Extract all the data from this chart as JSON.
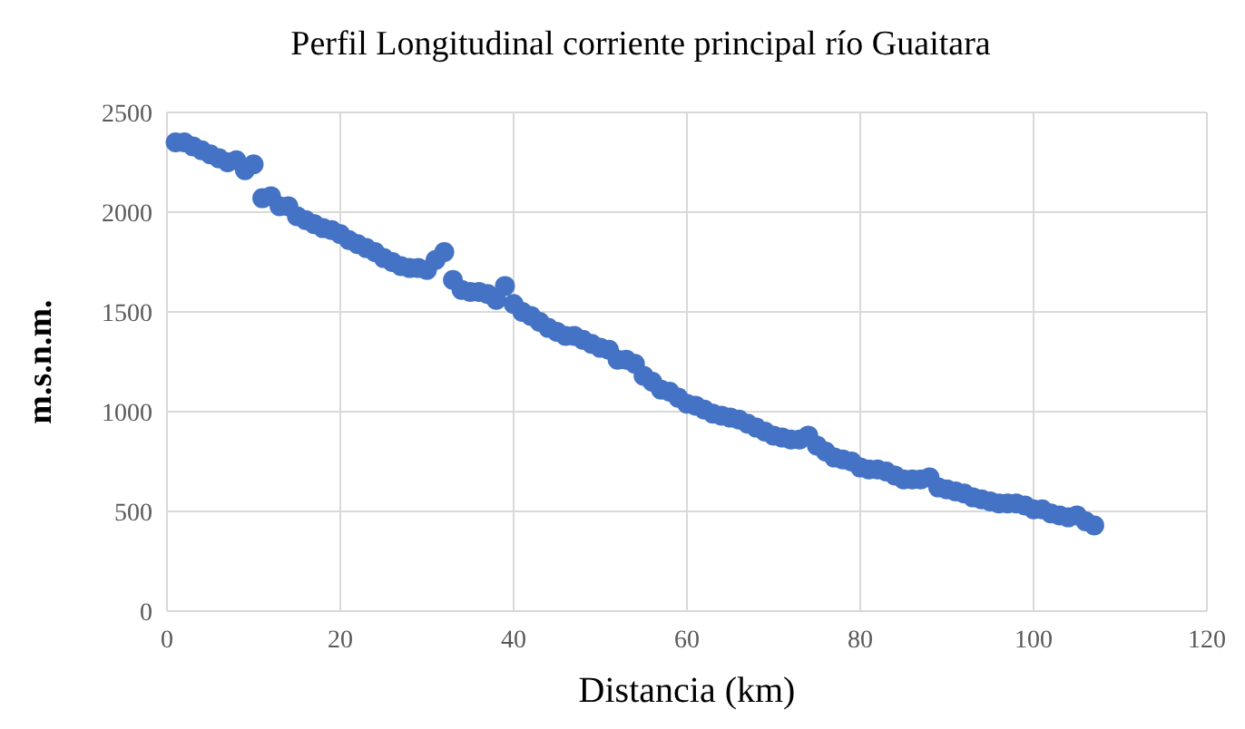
{
  "chart_data": {
    "type": "scatter",
    "title": "Perfil Longitudinal corriente principal río Guaitara",
    "xlabel": "Distancia (km)",
    "ylabel": "m.s.n.m.",
    "x": [
      1,
      2,
      3,
      4,
      5,
      6,
      7,
      8,
      9,
      10,
      11,
      12,
      13,
      14,
      15,
      16,
      17,
      18,
      19,
      20,
      21,
      22,
      23,
      24,
      25,
      26,
      27,
      28,
      29,
      30,
      31,
      32,
      33,
      34,
      35,
      36,
      37,
      38,
      39,
      40,
      41,
      42,
      43,
      44,
      45,
      46,
      47,
      48,
      49,
      50,
      51,
      52,
      53,
      54,
      55,
      56,
      57,
      58,
      59,
      60,
      61,
      62,
      63,
      64,
      65,
      66,
      67,
      68,
      69,
      70,
      71,
      72,
      73,
      74,
      75,
      76,
      77,
      78,
      79,
      80,
      81,
      82,
      83,
      84,
      85,
      86,
      87,
      88,
      89,
      90,
      91,
      92,
      93,
      94,
      95,
      96,
      97,
      98,
      99,
      100,
      101,
      102,
      103,
      104,
      105,
      106,
      107
    ],
    "series": [
      {
        "color": "#4472c4",
        "values": [
          2350,
          2350,
          2330,
          2310,
          2290,
          2270,
          2250,
          2260,
          2210,
          2240,
          2070,
          2080,
          2030,
          2030,
          1980,
          1960,
          1940,
          1920,
          1910,
          1890,
          1860,
          1840,
          1820,
          1800,
          1770,
          1750,
          1730,
          1720,
          1720,
          1710,
          1760,
          1800,
          1660,
          1610,
          1600,
          1600,
          1590,
          1560,
          1630,
          1540,
          1500,
          1480,
          1450,
          1420,
          1400,
          1380,
          1380,
          1360,
          1340,
          1320,
          1310,
          1260,
          1260,
          1240,
          1180,
          1150,
          1110,
          1100,
          1070,
          1040,
          1030,
          1010,
          990,
          980,
          970,
          960,
          940,
          920,
          900,
          880,
          870,
          860,
          860,
          880,
          830,
          800,
          770,
          760,
          750,
          720,
          710,
          710,
          700,
          680,
          660,
          660,
          660,
          670,
          620,
          610,
          600,
          590,
          570,
          560,
          550,
          540,
          540,
          540,
          530,
          510,
          510,
          490,
          480,
          470,
          480,
          450,
          430
        ]
      }
    ],
    "xlim": [
      0,
      120
    ],
    "xticks": [
      0,
      20,
      40,
      60,
      80,
      100,
      120
    ],
    "ylim": [
      0,
      2500
    ],
    "yticks": [
      0,
      500,
      1000,
      1500,
      2000,
      2500
    ],
    "grid": true,
    "marker": "circle"
  }
}
